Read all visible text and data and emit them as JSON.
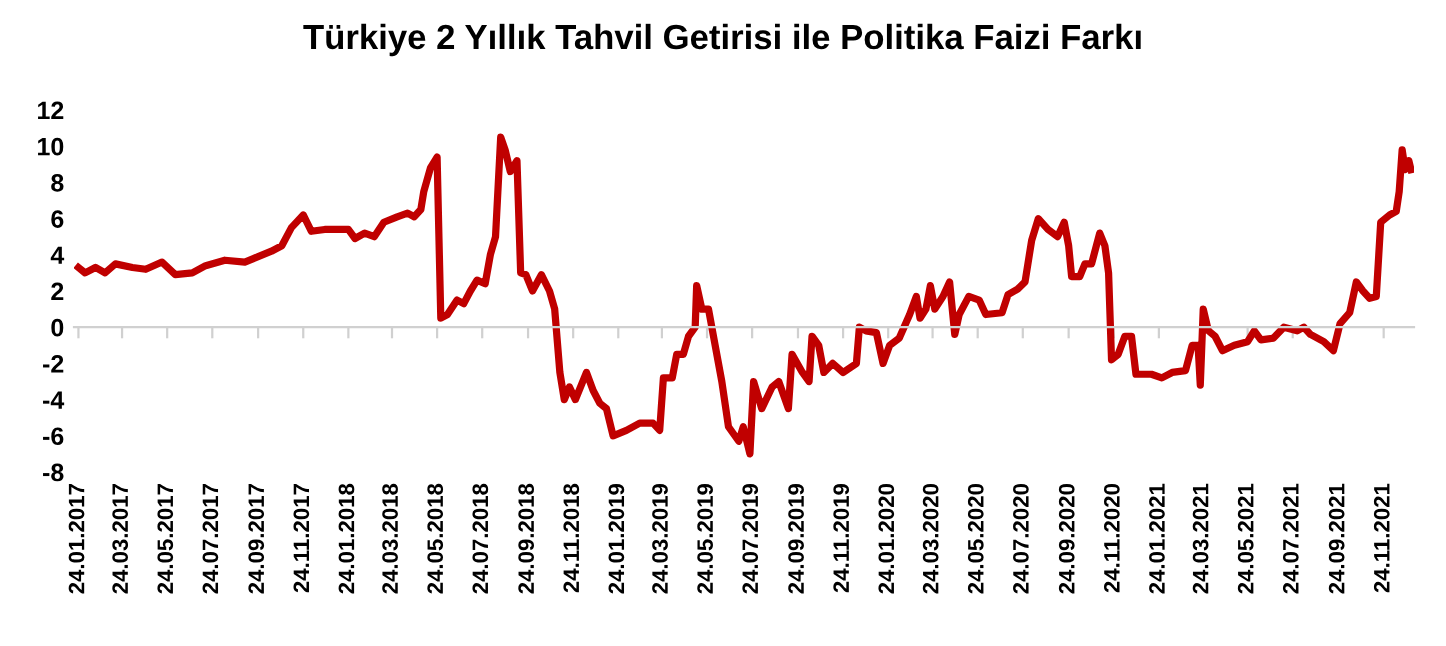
{
  "chart_data": {
    "type": "line",
    "title": "Türkiye 2 Yıllık Tahvil Getirisi ile Politika Faizi Farkı",
    "x": [
      "2017-01-24",
      "2017-02-02",
      "2017-02-16",
      "2017-03-01",
      "2017-03-15",
      "2017-04-07",
      "2017-04-25",
      "2017-05-17",
      "2017-06-04",
      "2017-06-27",
      "2017-07-15",
      "2017-08-10",
      "2017-09-06",
      "2017-09-24",
      "2017-10-12",
      "2017-10-26",
      "2017-11-08",
      "2017-11-24",
      "2017-12-05",
      "2017-12-23",
      "2018-01-10",
      "2018-01-24",
      "2018-02-02",
      "2018-02-15",
      "2018-02-28",
      "2018-03-13",
      "2018-03-31",
      "2018-04-14",
      "2018-04-23",
      "2018-05-02",
      "2018-05-06",
      "2018-05-15",
      "2018-05-24",
      "2018-05-29",
      "2018-06-07",
      "2018-06-20",
      "2018-06-29",
      "2018-07-08",
      "2018-07-17",
      "2018-07-28",
      "2018-08-04",
      "2018-08-11",
      "2018-08-18",
      "2018-08-24",
      "2018-08-31",
      "2018-09-09",
      "2018-09-14",
      "2018-09-21",
      "2018-09-30",
      "2018-10-12",
      "2018-10-23",
      "2018-10-30",
      "2018-11-06",
      "2018-11-12",
      "2018-11-19",
      "2018-11-27",
      "2018-12-12",
      "2018-12-21",
      "2018-12-30",
      "2019-01-08",
      "2019-01-17",
      "2019-02-04",
      "2019-02-22",
      "2019-03-12",
      "2019-03-21",
      "2019-03-26",
      "2019-04-07",
      "2019-04-13",
      "2019-04-22",
      "2019-04-29",
      "2019-05-08",
      "2019-05-10",
      "2019-05-17",
      "2019-05-26",
      "2019-06-04",
      "2019-06-13",
      "2019-06-22",
      "2019-07-06",
      "2019-07-12",
      "2019-07-21",
      "2019-07-26",
      "2019-08-06",
      "2019-08-20",
      "2019-08-29",
      "2019-09-11",
      "2019-09-16",
      "2019-09-30",
      "2019-10-09",
      "2019-10-13",
      "2019-10-22",
      "2019-10-29",
      "2019-11-10",
      "2019-11-24",
      "2019-12-12",
      "2019-12-16",
      "2019-12-25",
      "2020-01-08",
      "2020-01-17",
      "2020-01-26",
      "2020-02-08",
      "2020-02-22",
      "2020-03-02",
      "2020-03-07",
      "2020-03-15",
      "2020-03-21",
      "2020-03-27",
      "2020-04-07",
      "2020-04-16",
      "2020-04-23",
      "2020-04-29",
      "2020-05-12",
      "2020-05-26",
      "2020-06-04",
      "2020-06-26",
      "2020-07-04",
      "2020-07-17",
      "2020-07-27",
      "2020-08-05",
      "2020-08-14",
      "2020-08-27",
      "2020-09-09",
      "2020-09-18",
      "2020-09-24",
      "2020-09-28",
      "2020-10-09",
      "2020-10-16",
      "2020-10-25",
      "2020-11-05",
      "2020-11-12",
      "2020-11-17",
      "2020-11-21",
      "2020-11-30",
      "2020-12-09",
      "2020-12-18",
      "2020-12-24",
      "2021-01-14",
      "2021-01-28",
      "2021-02-11",
      "2021-03-01",
      "2021-03-10",
      "2021-03-18",
      "2021-03-21",
      "2021-03-25",
      "2021-04-01",
      "2021-04-10",
      "2021-04-20",
      "2021-05-06",
      "2021-05-24",
      "2021-06-02",
      "2021-06-11",
      "2021-06-28",
      "2021-07-12",
      "2021-07-30",
      "2021-08-08",
      "2021-08-17",
      "2021-09-04",
      "2021-09-17",
      "2021-09-26",
      "2021-10-09",
      "2021-10-18",
      "2021-10-27",
      "2021-11-05",
      "2021-11-14",
      "2021-11-20",
      "2021-12-02",
      "2021-12-11",
      "2021-12-15",
      "2021-12-19",
      "2021-12-23",
      "2021-12-28",
      "2021-12-31"
    ],
    "series": [
      {
        "color": "#c00000",
        "values": [
          3.3,
          3.0,
          3.3,
          3.0,
          3.5,
          3.3,
          3.2,
          3.6,
          2.9,
          3.0,
          3.4,
          3.7,
          3.6,
          3.9,
          4.2,
          4.5,
          5.5,
          6.2,
          5.3,
          5.4,
          5.4,
          5.4,
          4.9,
          5.2,
          5.0,
          5.8,
          6.1,
          6.3,
          6.1,
          6.5,
          7.5,
          8.8,
          9.4,
          0.5,
          0.7,
          1.5,
          1.3,
          2.0,
          2.6,
          2.4,
          4.0,
          5.0,
          10.5,
          9.8,
          8.6,
          9.2,
          3.0,
          2.9,
          2.0,
          2.9,
          2.0,
          1.0,
          -2.5,
          -4.0,
          -3.3,
          -4.0,
          -2.5,
          -3.5,
          -4.2,
          -4.5,
          -6.0,
          -5.7,
          -5.3,
          -5.3,
          -5.7,
          -2.8,
          -2.8,
          -1.5,
          -1.5,
          -0.5,
          0.0,
          2.3,
          1.0,
          1.0,
          -1.0,
          -3.0,
          -5.5,
          -6.3,
          -5.5,
          -7.0,
          -3.0,
          -4.5,
          -3.3,
          -3.0,
          -4.5,
          -1.5,
          -2.5,
          -3.0,
          -0.5,
          -1.0,
          -2.5,
          -2.0,
          -2.5,
          -2.0,
          0.0,
          -0.2,
          -0.3,
          -2.0,
          -1.0,
          -0.6,
          0.7,
          1.7,
          0.5,
          1.0,
          2.3,
          1.0,
          1.7,
          2.5,
          -0.4,
          0.7,
          1.7,
          1.5,
          0.7,
          0.8,
          1.8,
          2.1,
          2.5,
          4.8,
          6.0,
          5.4,
          5.0,
          5.8,
          4.5,
          2.8,
          2.8,
          3.5,
          3.5,
          5.2,
          4.5,
          3.0,
          -1.8,
          -1.5,
          -0.5,
          -0.5,
          -2.6,
          -2.6,
          -2.8,
          -2.5,
          -2.4,
          -1.0,
          -1.0,
          -3.2,
          1.0,
          -0.2,
          -0.5,
          -1.3,
          -1.0,
          -0.8,
          -0.2,
          -0.7,
          -0.6,
          0.0,
          -0.2,
          0.0,
          -0.4,
          -0.8,
          -1.3,
          0.2,
          0.8,
          2.5,
          2.0,
          1.6,
          1.7,
          5.8,
          6.2,
          6.4,
          7.5,
          9.8,
          8.7,
          9.2,
          8.7
        ]
      }
    ],
    "xlim": [
      "2017-01-18",
      "2022-01-04"
    ],
    "xticks": [
      {
        "value": "2017-01-24",
        "label": "24.01.2017"
      },
      {
        "value": "2017-03-24",
        "label": "24.03.2017"
      },
      {
        "value": "2017-05-24",
        "label": "24.05.2017"
      },
      {
        "value": "2017-07-24",
        "label": "24.07.2017"
      },
      {
        "value": "2017-09-24",
        "label": "24.09.2017"
      },
      {
        "value": "2017-11-24",
        "label": "24.11.2017"
      },
      {
        "value": "2018-01-24",
        "label": "24.01.2018"
      },
      {
        "value": "2018-03-24",
        "label": "24.03.2018"
      },
      {
        "value": "2018-05-24",
        "label": "24.05.2018"
      },
      {
        "value": "2018-07-24",
        "label": "24.07.2018"
      },
      {
        "value": "2018-09-24",
        "label": "24.09.2018"
      },
      {
        "value": "2018-11-24",
        "label": "24.11.2018"
      },
      {
        "value": "2019-01-24",
        "label": "24.01.2019"
      },
      {
        "value": "2019-03-24",
        "label": "24.03.2019"
      },
      {
        "value": "2019-05-24",
        "label": "24.05.2019"
      },
      {
        "value": "2019-07-24",
        "label": "24.07.2019"
      },
      {
        "value": "2019-09-24",
        "label": "24.09.2019"
      },
      {
        "value": "2019-11-24",
        "label": "24.11.2019"
      },
      {
        "value": "2020-01-24",
        "label": "24.01.2020"
      },
      {
        "value": "2020-03-24",
        "label": "24.03.2020"
      },
      {
        "value": "2020-05-24",
        "label": "24.05.2020"
      },
      {
        "value": "2020-07-24",
        "label": "24.07.2020"
      },
      {
        "value": "2020-09-24",
        "label": "24.09.2020"
      },
      {
        "value": "2020-11-24",
        "label": "24.11.2020"
      },
      {
        "value": "2021-01-24",
        "label": "24.01.2021"
      },
      {
        "value": "2021-03-24",
        "label": "24.03.2021"
      },
      {
        "value": "2021-05-24",
        "label": "24.05.2021"
      },
      {
        "value": "2021-07-24",
        "label": "24.07.2021"
      },
      {
        "value": "2021-09-24",
        "label": "24.09.2021"
      },
      {
        "value": "2021-11-24",
        "label": "24.11.2021"
      }
    ],
    "ylim": [
      -8,
      12
    ],
    "yticks": [
      -8,
      -6,
      -4,
      -2,
      0,
      2,
      4,
      6,
      8,
      10,
      12
    ],
    "legend": false,
    "marker": "none",
    "line_style": "solid"
  }
}
